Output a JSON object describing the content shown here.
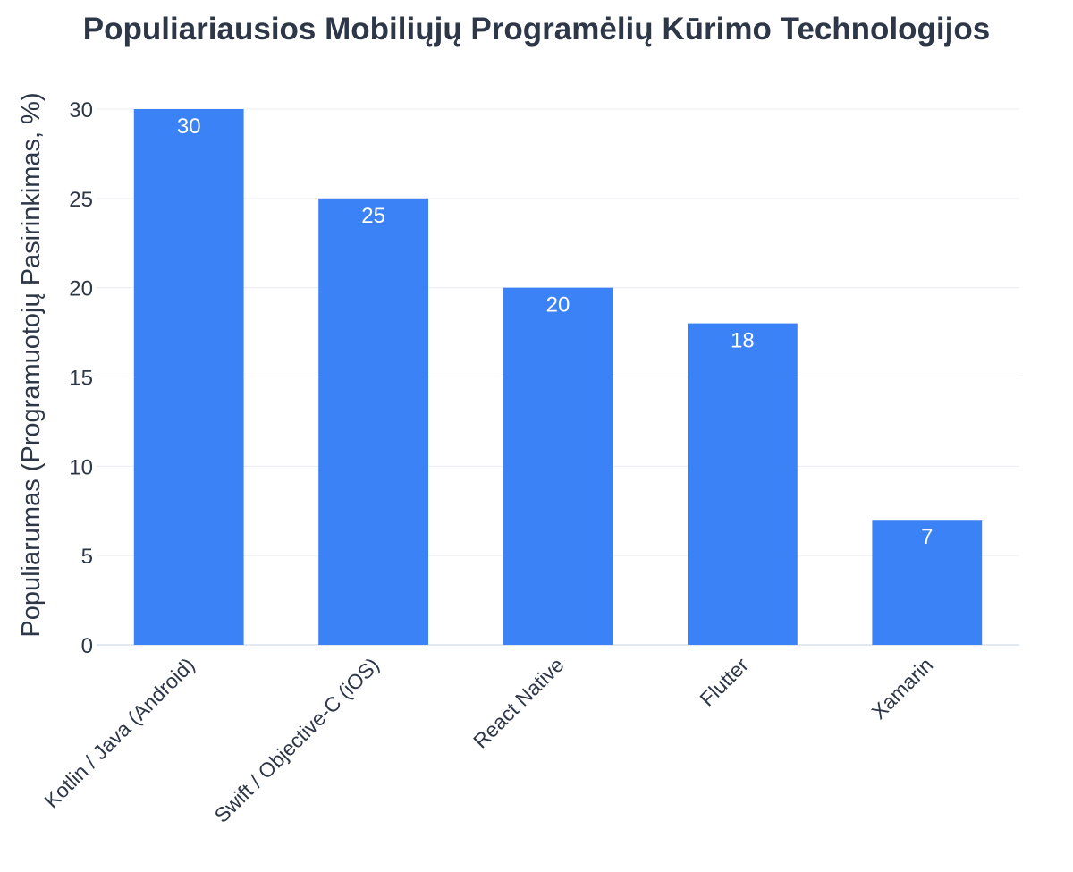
{
  "chart_data": {
    "type": "bar",
    "title": "Populiariausios Mobiliųjų Programėlių Kūrimo Technologijos",
    "xlabel": "",
    "ylabel": "Populiarumas (Programuotojų Pasirinkimas, %)",
    "categories": [
      "Kotlin / Java (Android)",
      "Swift / Objective-C (iOS)",
      "React Native",
      "Flutter",
      "Xamarin"
    ],
    "values": [
      30,
      25,
      20,
      18,
      7
    ],
    "data_labels": [
      "30",
      "25",
      "20",
      "18",
      "7"
    ],
    "ylim": [
      0,
      30
    ],
    "yticks": [
      0,
      5,
      10,
      15,
      20,
      25,
      30
    ],
    "ytick_labels": [
      "0",
      "5",
      "10",
      "15",
      "20",
      "25",
      "30"
    ],
    "grid": true,
    "legend": "none",
    "bar_color": "#3b82f6",
    "text_color": "#2d3748",
    "grid_color": "#e9ecf1"
  }
}
